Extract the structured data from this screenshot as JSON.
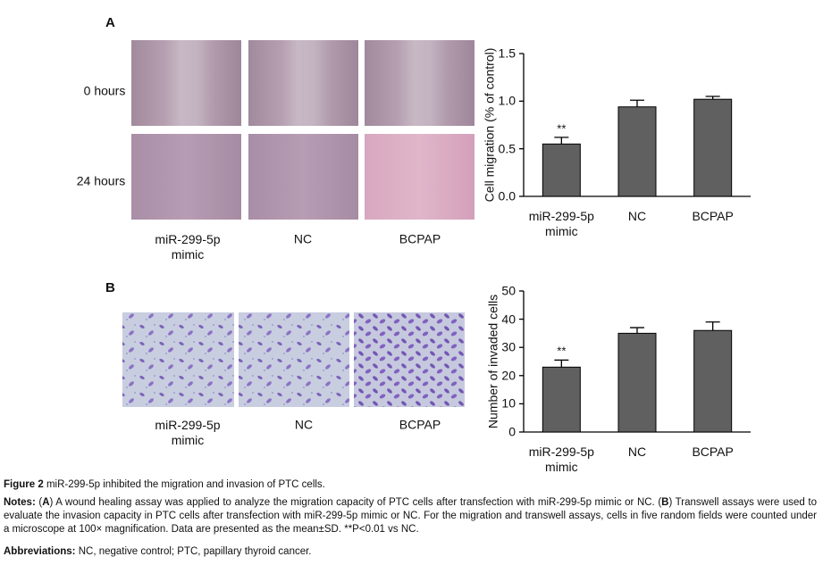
{
  "panels": [
    {
      "label": "A",
      "row_labels": [
        "0 hours",
        "24 hours"
      ],
      "column_labels": [
        "miR-299-5p mimic",
        "NC",
        "BCPAP"
      ]
    },
    {
      "label": "B",
      "column_labels": [
        "miR-299-5p mimic",
        "NC",
        "BCPAP"
      ]
    }
  ],
  "chart_data": [
    {
      "type": "bar",
      "y_label": "Cell migration (% of control)",
      "categories": [
        "miR-299-5p mimic",
        "NC",
        "BCPAP"
      ],
      "values": [
        0.55,
        0.94,
        1.02
      ],
      "errors": [
        0.07,
        0.07,
        0.03
      ],
      "significance": [
        "**",
        null,
        null
      ],
      "color": "#606060",
      "ylim": [
        0,
        1.5
      ],
      "yticks": [
        {
          "value": 0,
          "label": "0.0"
        },
        0.5,
        {
          "value": 1,
          "label": "1.0"
        },
        1.5
      ]
    },
    {
      "type": "bar",
      "y_label": "Number of invaded cells",
      "categories": [
        "miR-299-5p mimic",
        "NC",
        "BCPAP"
      ],
      "values": [
        23,
        35,
        36
      ],
      "errors": [
        2.5,
        2,
        3
      ],
      "significance": [
        "**",
        null,
        null
      ],
      "color": "#606060",
      "ylim": [
        0,
        50
      ],
      "yticks": [
        0,
        10,
        20,
        30,
        40,
        50
      ]
    }
  ],
  "caption": {
    "figure_label": "Figure 2",
    "title": "miR-299-5p inhibited the migration and invasion of PTC cells.",
    "notes": [
      {
        "text": "Notes:",
        "bold": true
      },
      {
        "text": " (",
        "bold": false
      },
      {
        "text": "A",
        "bold": true
      },
      {
        "text": ") A wound healing assay was applied to analyze the migration capacity of PTC cells after transfection with miR-299-5p mimic or NC. (",
        "bold": false
      },
      {
        "text": "B",
        "bold": true
      },
      {
        "text": ") Transwell assays were used to evaluate the invasion capacity in PTC cells after transfection with miR-299-5p mimic or NC. For the migration and transwell assays, cells in five random fields were counted under a microscope at 100× magnification. Data are presented as the mean±SD. **P<0.01 vs NC.",
        "bold": false
      }
    ],
    "abbreviations_label": "Abbreviations:",
    "abbreviations": "NC, negative control; PTC, papillary thyroid cancer."
  }
}
